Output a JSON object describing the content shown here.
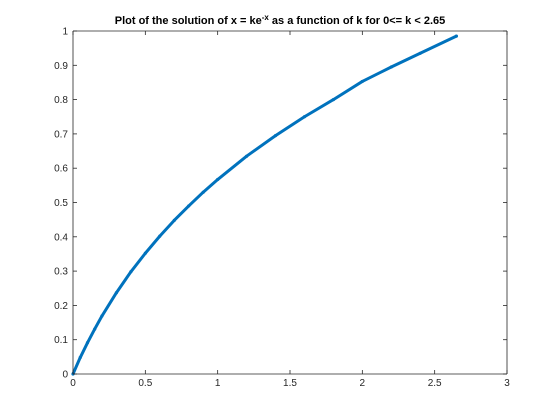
{
  "chart_data": {
    "type": "line",
    "title": {
      "pre": "Plot of the solution of x = ke",
      "sup": "-x",
      "post": " as a function of k for 0<= k < 2.65"
    },
    "xlabel": "",
    "ylabel": "",
    "xlim": [
      0,
      3
    ],
    "ylim": [
      0,
      1
    ],
    "x_ticks": [
      0,
      0.5,
      1,
      1.5,
      2,
      2.5,
      3
    ],
    "x_tick_labels": [
      "0",
      "0.5",
      "1",
      "1.5",
      "2",
      "2.5",
      "3"
    ],
    "y_ticks": [
      0,
      0.1,
      0.2,
      0.3,
      0.4,
      0.5,
      0.6,
      0.7,
      0.8,
      0.9,
      1
    ],
    "y_tick_labels": [
      "0",
      "0.1",
      "0.2",
      "0.3",
      "0.4",
      "0.5",
      "0.6",
      "0.7",
      "0.8",
      "0.9",
      "1"
    ],
    "grid": false,
    "box": true,
    "series": [
      {
        "color": "#0072bd",
        "marker": "dot",
        "x": [
          0,
          0.05,
          0.1,
          0.15,
          0.2,
          0.3,
          0.4,
          0.5,
          0.6,
          0.7,
          0.8,
          0.9,
          1.0,
          1.2,
          1.4,
          1.6,
          1.8,
          2.0,
          2.2,
          2.4,
          2.65
        ],
        "y": [
          0,
          0.048,
          0.091,
          0.131,
          0.169,
          0.237,
          0.298,
          0.352,
          0.402,
          0.448,
          0.49,
          0.53,
          0.567,
          0.635,
          0.695,
          0.75,
          0.8,
          0.853,
          0.895,
          0.935,
          0.985
        ]
      }
    ]
  }
}
